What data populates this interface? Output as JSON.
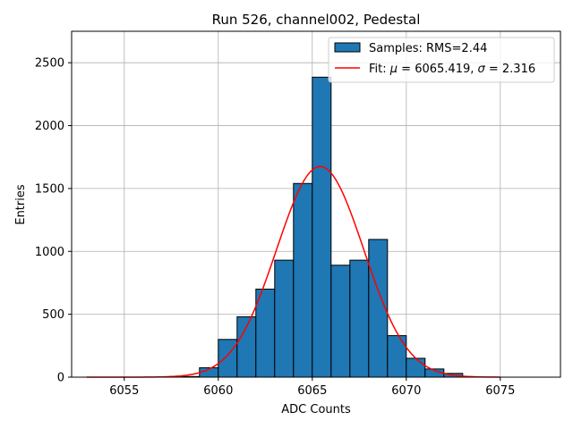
{
  "chart_data": {
    "type": "bar",
    "title": "Run 526, channel002, Pedestal",
    "xlabel": "ADC Counts",
    "ylabel": "Entries",
    "xlim": [
      6052.2,
      6078.2
    ],
    "ylim": [
      0,
      2750
    ],
    "xticks": [
      6055,
      6060,
      6065,
      6070,
      6075
    ],
    "yticks": [
      0,
      500,
      1000,
      1500,
      2000,
      2500
    ],
    "grid": true,
    "legend_position": "top-right",
    "histogram": {
      "name": "Samples: RMS=2.44",
      "color": "#1f77b4",
      "bin_edges": [
        6058,
        6059,
        6060,
        6061,
        6062,
        6063,
        6064,
        6065,
        6066,
        6067,
        6068,
        6069,
        6070,
        6071,
        6072,
        6073
      ],
      "counts": [
        5,
        75,
        300,
        480,
        700,
        930,
        1540,
        2385,
        890,
        930,
        1095,
        330,
        150,
        65,
        30
      ]
    },
    "fit": {
      "name_prefix": "Fit: ",
      "name_mu": "μ",
      "name_mid": " = 6065.419, ",
      "name_sigma": "σ",
      "name_suffix": " = 2.316",
      "color": "#ff0000",
      "mu": 6065.419,
      "sigma": 2.316,
      "amplitude": 1675,
      "x_range": [
        6053,
        6075
      ]
    }
  }
}
